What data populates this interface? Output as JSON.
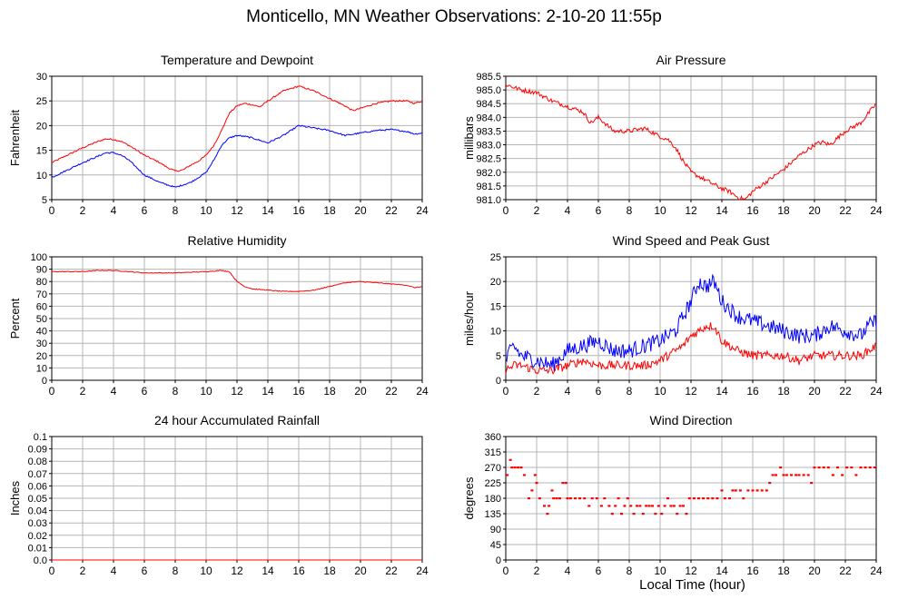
{
  "page": {
    "title": "Monticello, MN Weather Observations: 2-10-20 11:55p",
    "x_axis_label": "Local Time (hour)"
  },
  "colors": {
    "red": "#ff0000",
    "blue": "#0000ff",
    "grid": "#b4b4b4",
    "axis": "#000000"
  },
  "chart_data": [
    {
      "id": "temp",
      "type": "line",
      "title": "Temperature and Dewpoint",
      "ylabel": "Fahrenheit",
      "xlim": [
        0,
        24
      ],
      "ylim": [
        5,
        30
      ],
      "xticks": [
        0,
        2,
        4,
        6,
        8,
        10,
        12,
        14,
        16,
        18,
        20,
        22,
        24
      ],
      "yticks": [
        5,
        10,
        15,
        20,
        25,
        30
      ],
      "ytick_labels": [
        "5",
        "10",
        "15",
        "20",
        "25",
        "30"
      ],
      "grid": true,
      "series": [
        {
          "color": "red",
          "noise": 0.15,
          "x": [
            0,
            1,
            2,
            3,
            3.5,
            4,
            4.5,
            5,
            6,
            7,
            7.5,
            8,
            8.5,
            9,
            9.5,
            10,
            10.5,
            11,
            11.5,
            12,
            12.5,
            13,
            13.5,
            14,
            15,
            16,
            17,
            18,
            19,
            19.5,
            20,
            21,
            22,
            23,
            23.5,
            24
          ],
          "values": [
            12.5,
            14,
            15.5,
            16.8,
            17.3,
            17.2,
            16.8,
            16,
            14,
            12.5,
            11.5,
            10.8,
            11,
            12,
            12.8,
            14,
            16,
            19,
            22.5,
            24,
            24.5,
            24.2,
            23.8,
            25,
            27,
            28,
            27,
            25.5,
            24,
            23,
            23.5,
            24.5,
            25,
            25,
            24.5,
            25
          ]
        },
        {
          "color": "blue",
          "noise": 0.15,
          "x": [
            0,
            1,
            2,
            3,
            3.5,
            4,
            4.5,
            5,
            5.5,
            6,
            7,
            7.5,
            8,
            8.5,
            9,
            9.5,
            10,
            10.5,
            11,
            11.5,
            12,
            12.5,
            13,
            13.5,
            14,
            15,
            16,
            17,
            18,
            19,
            20,
            21,
            22,
            23,
            23.5,
            24
          ],
          "values": [
            9.5,
            11,
            12.5,
            13.8,
            14.5,
            14.5,
            14,
            13,
            11.5,
            10,
            8.5,
            8,
            7.5,
            8,
            8.5,
            9.5,
            10.5,
            13,
            16,
            17.5,
            18,
            17.8,
            17.5,
            17,
            16.5,
            18,
            20,
            19.5,
            19,
            18,
            18.5,
            19,
            19.2,
            18.8,
            18.3,
            18.5
          ]
        }
      ]
    },
    {
      "id": "pressure",
      "type": "line",
      "title": "Air Pressure",
      "ylabel": "millibars",
      "xlim": [
        0,
        24
      ],
      "ylim": [
        981.0,
        985.5
      ],
      "xticks": [
        0,
        2,
        4,
        6,
        8,
        10,
        12,
        14,
        16,
        18,
        20,
        22,
        24
      ],
      "yticks": [
        981.0,
        981.5,
        982.0,
        982.5,
        983.0,
        983.5,
        984.0,
        984.5,
        985.0,
        985.5
      ],
      "ytick_labels": [
        "981.0",
        "981.5",
        "982.0",
        "982.5",
        "983.0",
        "983.5",
        "984.0",
        "984.5",
        "985.0",
        "985.5"
      ],
      "grid": true,
      "series": [
        {
          "color": "red",
          "noise": 0.08,
          "x": [
            0,
            0.5,
            1,
            2,
            3,
            4,
            5,
            5.5,
            6,
            7,
            8,
            9,
            10,
            10.5,
            11,
            11.5,
            12,
            13,
            14,
            14.5,
            15,
            15.5,
            16,
            17,
            18,
            19,
            20,
            20.5,
            21,
            22,
            23,
            24
          ],
          "values": [
            985.2,
            985.1,
            985.0,
            984.9,
            984.6,
            984.4,
            984.2,
            983.8,
            984.0,
            983.5,
            983.5,
            983.6,
            983.3,
            983.2,
            982.9,
            982.4,
            982.0,
            981.7,
            981.4,
            981.3,
            981.1,
            981.0,
            981.3,
            981.7,
            982.1,
            982.6,
            983.0,
            983.1,
            983.0,
            983.5,
            983.8,
            984.5
          ]
        }
      ]
    },
    {
      "id": "rh",
      "type": "line",
      "title": "Relative Humidity",
      "ylabel": "Percent",
      "xlim": [
        0,
        24
      ],
      "ylim": [
        0,
        100
      ],
      "xticks": [
        0,
        2,
        4,
        6,
        8,
        10,
        12,
        14,
        16,
        18,
        20,
        22,
        24
      ],
      "yticks": [
        0,
        10,
        20,
        30,
        40,
        50,
        60,
        70,
        80,
        90,
        100
      ],
      "ytick_labels": [
        "0",
        "10",
        "20",
        "30",
        "40",
        "50",
        "60",
        "70",
        "80",
        "90",
        "100"
      ],
      "grid": true,
      "series": [
        {
          "color": "red",
          "noise": 0.3,
          "x": [
            0,
            2,
            3,
            4,
            5,
            6,
            8,
            10,
            11,
            11.5,
            12,
            12.5,
            13,
            14,
            15,
            16,
            17,
            18,
            19,
            20,
            21,
            22,
            23,
            23.5,
            24
          ],
          "values": [
            88,
            88,
            89,
            89,
            88,
            87,
            87,
            88,
            89,
            88,
            80,
            76,
            74,
            73,
            72,
            72,
            73,
            76,
            79,
            80,
            79,
            78,
            77,
            75,
            76
          ]
        }
      ]
    },
    {
      "id": "wind",
      "type": "line",
      "title": "Wind Speed and Peak Gust",
      "ylabel": "miles/hour",
      "xlim": [
        0,
        24
      ],
      "ylim": [
        0,
        25
      ],
      "xticks": [
        0,
        2,
        4,
        6,
        8,
        10,
        12,
        14,
        16,
        18,
        20,
        22,
        24
      ],
      "yticks": [
        0,
        5,
        10,
        15,
        20,
        25
      ],
      "ytick_labels": [
        "0",
        "5",
        "10",
        "15",
        "20",
        "25"
      ],
      "grid": true,
      "series": [
        {
          "color": "blue",
          "noise": 1.6,
          "x": [
            0,
            0.5,
            1,
            2,
            3,
            4,
            5,
            6,
            7,
            8,
            9,
            10,
            11,
            11.5,
            12,
            12.5,
            13,
            13.5,
            14,
            15,
            16,
            17,
            18,
            19,
            20,
            21,
            22,
            23,
            23.5,
            24
          ],
          "values": [
            4,
            7,
            5,
            4,
            3,
            6,
            7,
            8,
            6,
            6,
            7,
            8,
            10,
            13,
            16,
            20,
            19,
            20,
            16,
            13,
            12,
            11,
            10,
            9,
            9,
            11,
            10,
            9,
            11,
            12
          ]
        },
        {
          "color": "red",
          "noise": 0.9,
          "x": [
            0,
            0.5,
            1,
            2,
            3,
            4,
            5,
            6,
            7,
            8,
            9,
            10,
            11,
            11.5,
            12,
            12.5,
            13,
            13.5,
            14,
            15,
            16,
            17,
            18,
            19,
            20,
            21,
            22,
            23,
            23.5,
            24
          ],
          "values": [
            2,
            3,
            3,
            2,
            2,
            3,
            4,
            3,
            3,
            3,
            3,
            4,
            6,
            7,
            9,
            10,
            11,
            11,
            8,
            6,
            5,
            5,
            5,
            4,
            5,
            5,
            5,
            5,
            6,
            7
          ]
        }
      ]
    },
    {
      "id": "rain",
      "type": "line",
      "title": "24 hour Accumulated Rainfall",
      "ylabel": "Inches",
      "xlim": [
        0,
        24
      ],
      "ylim": [
        0,
        0.1
      ],
      "xticks": [
        0,
        2,
        4,
        6,
        8,
        10,
        12,
        14,
        16,
        18,
        20,
        22,
        24
      ],
      "yticks": [
        0,
        0.01,
        0.02,
        0.03,
        0.04,
        0.05,
        0.06,
        0.07,
        0.08,
        0.09,
        0.1
      ],
      "ytick_labels": [
        "0.0",
        "0.01",
        "0.02",
        "0.03",
        "0.04",
        "0.05",
        "0.06",
        "0.07",
        "0.08",
        "0.09",
        "0.1"
      ],
      "grid": true,
      "series": [
        {
          "color": "red",
          "noise": 0,
          "x": [
            0,
            24
          ],
          "values": [
            0,
            0
          ]
        }
      ]
    },
    {
      "id": "winddir",
      "type": "scatter",
      "title": "Wind Direction",
      "ylabel": "degrees",
      "xlim": [
        0,
        24
      ],
      "ylim": [
        0,
        360
      ],
      "xticks": [
        0,
        2,
        4,
        6,
        8,
        10,
        12,
        14,
        16,
        18,
        20,
        22,
        24
      ],
      "yticks": [
        0,
        45,
        90,
        135,
        180,
        225,
        270,
        315,
        360
      ],
      "ytick_labels": [
        "0",
        "45",
        "90",
        "135",
        "180",
        "225",
        "270",
        "315",
        "360"
      ],
      "grid": true,
      "series": [
        {
          "color": "red",
          "noise": 0,
          "points": [
            [
              0.1,
              248
            ],
            [
              0.3,
              292
            ],
            [
              0.4,
              270
            ],
            [
              0.6,
              270
            ],
            [
              0.8,
              270
            ],
            [
              1.0,
              270
            ],
            [
              1.2,
              248
            ],
            [
              1.5,
              180
            ],
            [
              1.7,
              203
            ],
            [
              1.9,
              248
            ],
            [
              2.0,
              225
            ],
            [
              2.2,
              180
            ],
            [
              2.5,
              158
            ],
            [
              2.7,
              135
            ],
            [
              2.8,
              158
            ],
            [
              3.0,
              203
            ],
            [
              3.1,
              180
            ],
            [
              3.3,
              180
            ],
            [
              3.5,
              180
            ],
            [
              3.7,
              225
            ],
            [
              3.9,
              225
            ],
            [
              4.0,
              180
            ],
            [
              4.2,
              180
            ],
            [
              4.5,
              180
            ],
            [
              4.8,
              180
            ],
            [
              5.1,
              180
            ],
            [
              5.4,
              158
            ],
            [
              5.6,
              180
            ],
            [
              5.9,
              180
            ],
            [
              6.2,
              158
            ],
            [
              6.4,
              180
            ],
            [
              6.7,
              158
            ],
            [
              6.9,
              135
            ],
            [
              7.1,
              158
            ],
            [
              7.3,
              180
            ],
            [
              7.5,
              135
            ],
            [
              7.7,
              158
            ],
            [
              7.9,
              180
            ],
            [
              8.1,
              158
            ],
            [
              8.3,
              135
            ],
            [
              8.5,
              158
            ],
            [
              8.7,
              158
            ],
            [
              8.9,
              135
            ],
            [
              9.1,
              158
            ],
            [
              9.3,
              158
            ],
            [
              9.5,
              158
            ],
            [
              9.7,
              135
            ],
            [
              9.9,
              158
            ],
            [
              10.1,
              135
            ],
            [
              10.3,
              158
            ],
            [
              10.5,
              180
            ],
            [
              10.7,
              158
            ],
            [
              10.9,
              158
            ],
            [
              11.1,
              135
            ],
            [
              11.3,
              158
            ],
            [
              11.5,
              158
            ],
            [
              11.7,
              135
            ],
            [
              11.9,
              180
            ],
            [
              12.2,
              180
            ],
            [
              12.5,
              180
            ],
            [
              12.8,
              180
            ],
            [
              13.1,
              180
            ],
            [
              13.4,
              180
            ],
            [
              13.7,
              180
            ],
            [
              14.0,
              203
            ],
            [
              14.2,
              180
            ],
            [
              14.5,
              180
            ],
            [
              14.7,
              203
            ],
            [
              14.9,
              203
            ],
            [
              15.2,
              203
            ],
            [
              15.4,
              180
            ],
            [
              15.7,
              203
            ],
            [
              16.0,
              203
            ],
            [
              16.3,
              203
            ],
            [
              16.6,
              203
            ],
            [
              16.9,
              203
            ],
            [
              17.1,
              225
            ],
            [
              17.3,
              248
            ],
            [
              17.5,
              248
            ],
            [
              17.8,
              270
            ],
            [
              18.0,
              248
            ],
            [
              18.2,
              248
            ],
            [
              18.5,
              248
            ],
            [
              18.8,
              248
            ],
            [
              19.0,
              248
            ],
            [
              19.3,
              248
            ],
            [
              19.6,
              248
            ],
            [
              19.8,
              225
            ],
            [
              20.0,
              270
            ],
            [
              20.3,
              270
            ],
            [
              20.6,
              270
            ],
            [
              20.9,
              270
            ],
            [
              21.2,
              248
            ],
            [
              21.5,
              270
            ],
            [
              21.8,
              248
            ],
            [
              22.1,
              270
            ],
            [
              22.4,
              270
            ],
            [
              22.7,
              248
            ],
            [
              23.0,
              270
            ],
            [
              23.3,
              270
            ],
            [
              23.6,
              270
            ],
            [
              23.9,
              270
            ]
          ]
        }
      ]
    }
  ]
}
